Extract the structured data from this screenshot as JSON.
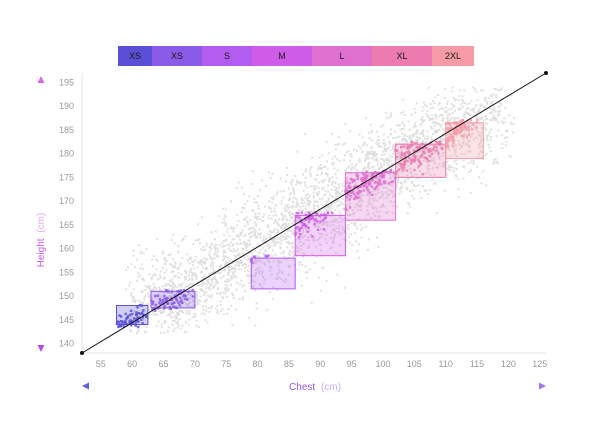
{
  "chart_data": {
    "type": "scatter",
    "title": "",
    "xlabel": "Chest",
    "xlabel_unit": "(cm)",
    "ylabel": "Height",
    "ylabel_unit": "(cm)",
    "xlim": [
      52,
      126
    ],
    "ylim": [
      138,
      197
    ],
    "x_ticks": [
      55,
      60,
      65,
      70,
      75,
      80,
      85,
      90,
      95,
      100,
      105,
      110,
      115,
      120,
      125
    ],
    "y_ticks": [
      140,
      145,
      150,
      155,
      160,
      165,
      170,
      175,
      180,
      185,
      190,
      195
    ],
    "grid": false,
    "trend_line": {
      "from": [
        52,
        138
      ],
      "to": [
        126,
        197
      ]
    },
    "background_scatter": {
      "color": "#dddddd",
      "approx_points": 3000,
      "spread_x_cm": 9,
      "spread_y_cm": 4
    },
    "size_boxes": [
      {
        "label": "XS",
        "chest": [
          57.5,
          62.5
        ],
        "height": [
          144,
          148
        ],
        "color": "#5b4fd6"
      },
      {
        "label": "XS",
        "chest": [
          63,
          70
        ],
        "height": [
          147.5,
          151
        ],
        "color": "#8a5ae8"
      },
      {
        "label": "S",
        "chest": [
          79,
          86
        ],
        "height": [
          151.5,
          158
        ],
        "color": "#b35cf0"
      },
      {
        "label": "M",
        "chest": [
          86,
          94
        ],
        "height": [
          158.5,
          167
        ],
        "color": "#cf5ce8"
      },
      {
        "label": "L",
        "chest": [
          94,
          102
        ],
        "height": [
          166,
          176
        ],
        "color": "#e070d0"
      },
      {
        "label": "XL",
        "chest": [
          102,
          110
        ],
        "height": [
          175,
          182
        ],
        "color": "#ec7cb0"
      },
      {
        "label": "2XL",
        "chest": [
          110,
          116
        ],
        "height": [
          179,
          186.5
        ],
        "color": "#f59aa6"
      }
    ],
    "legend_placement": "top",
    "colors": {
      "axis_text": "#9a9a9a",
      "x_axis_title": "#8a5ae8",
      "y_axis_title": "#c75ae8",
      "background_points": "#dddddd",
      "trend_line": "#111111"
    }
  }
}
